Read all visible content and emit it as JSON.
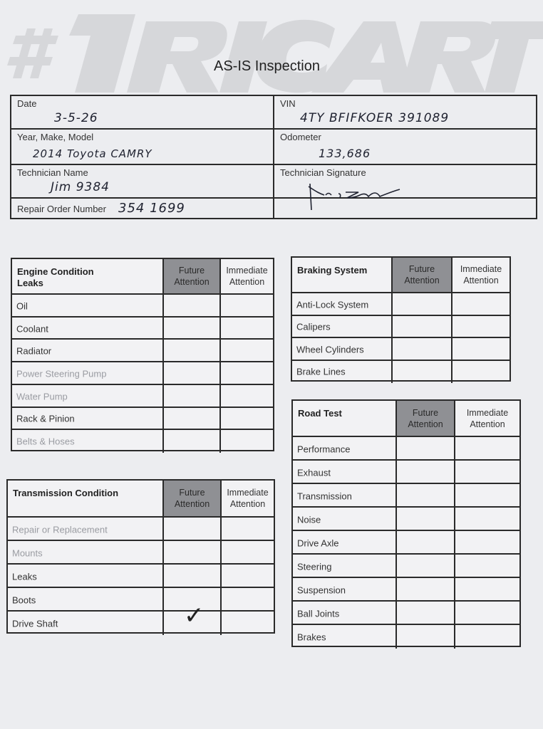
{
  "logo_text": "#1RICART",
  "title": "AS-IS Inspection",
  "header": {
    "date_label": "Date",
    "date_value": "3-5-26",
    "ymm_label": "Year, Make, Model",
    "ymm_value": "2014  Toyota  CAMRY",
    "tech_label": "Technician Name",
    "tech_value": "Jim  9384",
    "ro_label": "Repair Order Number",
    "ro_value": "354 1699",
    "vin_label": "VIN",
    "vin_value": "4TY BFIFKOER 391089",
    "odo_label": "Odometer",
    "odo_value": "133,686",
    "sig_label": "Technician Signature"
  },
  "tables": [
    {
      "id": "engine",
      "title": "Engine Condition\nLeaks",
      "future": "Future\nAttention",
      "immediate": "Immediate\nAttention",
      "rows": [
        {
          "label": "Oil"
        },
        {
          "label": "Coolant"
        },
        {
          "label": "Radiator"
        },
        {
          "label": "Power Steering Pump",
          "faint": true
        },
        {
          "label": "Water Pump",
          "faint": true
        },
        {
          "label": "Rack & Pinion"
        },
        {
          "label": "Belts & Hoses",
          "faint": true
        }
      ]
    },
    {
      "id": "braking",
      "title": "Braking System",
      "future": "Future\nAttention",
      "immediate": "Immediate\nAttention",
      "rows": [
        {
          "label": "Anti-Lock System"
        },
        {
          "label": "Calipers"
        },
        {
          "label": "Wheel Cylinders"
        },
        {
          "label": "Brake Lines"
        }
      ]
    },
    {
      "id": "road-test",
      "title": "Road Test",
      "future": "Future\nAttention",
      "immediate": "Immediate\nAttention",
      "rows": [
        {
          "label": "Performance"
        },
        {
          "label": "Exhaust"
        },
        {
          "label": "Transmission"
        },
        {
          "label": "Noise"
        },
        {
          "label": "Drive Axle"
        },
        {
          "label": "Steering"
        },
        {
          "label": "Suspension"
        },
        {
          "label": "Ball Joints"
        },
        {
          "label": "Brakes"
        }
      ]
    },
    {
      "id": "transmission",
      "title": "Transmission Condition",
      "title_faint": true,
      "future": "Future\nAttention",
      "immediate": "Immediate\nAttention",
      "rows": [
        {
          "label": "Repair or Replacement",
          "faint": true
        },
        {
          "label": "Mounts",
          "faint": true
        },
        {
          "label": "Leaks"
        },
        {
          "label": "Boots"
        },
        {
          "label": "Drive Shaft",
          "future_checked": true
        }
      ]
    }
  ]
}
